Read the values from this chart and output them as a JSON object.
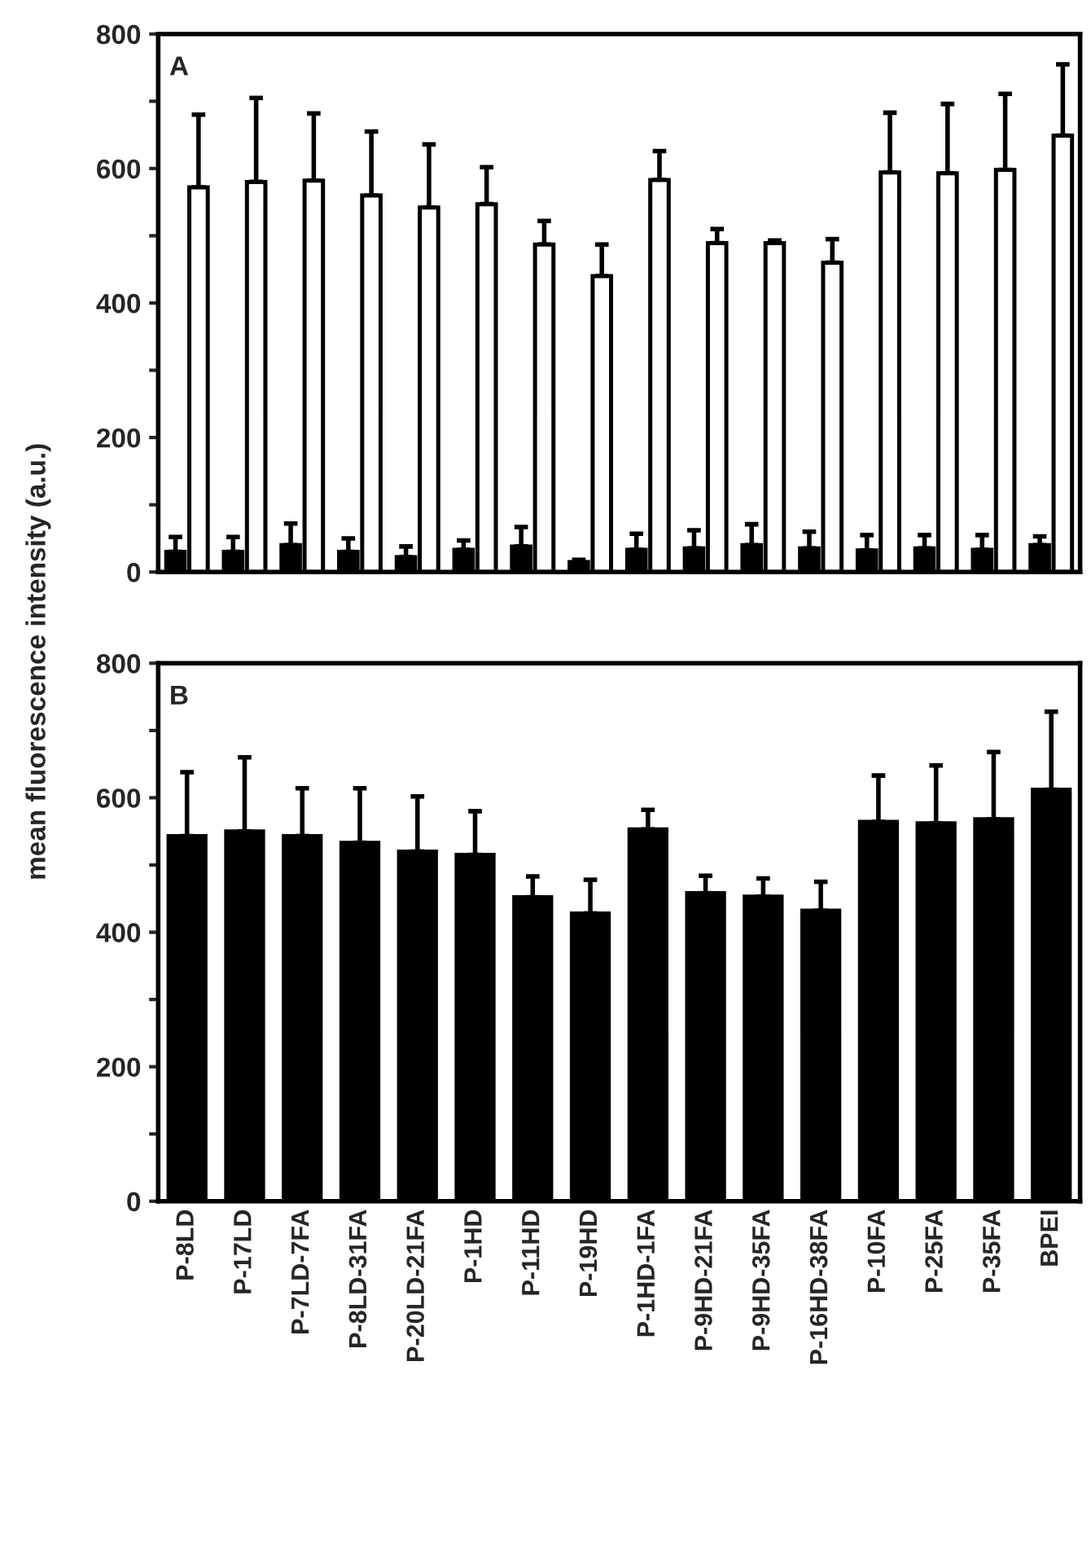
{
  "chart_data": [
    {
      "type": "bar",
      "ylabel": "mean fluorescence intensity (a.u.)",
      "annotations": [
        "A"
      ],
      "tick_labels": "y",
      "categories": [
        null,
        null,
        null,
        null,
        null,
        null,
        null,
        null,
        null,
        null,
        null,
        null,
        null,
        null,
        null,
        null
      ],
      "ylim": [
        0,
        800
      ],
      "yticks": [
        0,
        {
          "value": 100,
          "label": null
        },
        200,
        {
          "value": 300,
          "label": null
        },
        400,
        {
          "value": 500,
          "label": null
        },
        600,
        {
          "value": 700,
          "label": null
        },
        800
      ],
      "series": [
        {
          "color": "#000000",
          "values": [
            30,
            30,
            40,
            30,
            22,
            33,
            38,
            15,
            33,
            35,
            40,
            35,
            32,
            35,
            33,
            40
          ],
          "errors": [
            [
              30,
              52
            ],
            [
              30,
              52
            ],
            [
              40,
              72
            ],
            [
              30,
              50
            ],
            [
              22,
              38
            ],
            [
              33,
              47
            ],
            [
              38,
              67
            ],
            [
              15,
              18
            ],
            [
              33,
              57
            ],
            [
              35,
              62
            ],
            [
              40,
              71
            ],
            [
              35,
              60
            ],
            [
              32,
              55
            ],
            [
              35,
              55
            ],
            [
              33,
              55
            ],
            [
              40,
              53
            ]
          ]
        },
        {
          "color": "#ffffff",
          "values": [
            572,
            580,
            582,
            560,
            542,
            547,
            487,
            440,
            583,
            489,
            489,
            460,
            594,
            593,
            598,
            649
          ],
          "errors": [
            [
              572,
              680
            ],
            [
              580,
              705
            ],
            [
              582,
              682
            ],
            [
              560,
              655
            ],
            [
              542,
              636
            ],
            [
              547,
              602
            ],
            [
              487,
              522
            ],
            [
              440,
              487
            ],
            [
              583,
              626
            ],
            [
              489,
              510
            ],
            [
              489,
              493
            ],
            [
              460,
              495
            ],
            [
              594,
              683
            ],
            [
              593,
              696
            ],
            [
              598,
              711
            ],
            [
              649,
              755
            ]
          ]
        }
      ]
    },
    {
      "type": "bar",
      "annotations": [
        "B"
      ],
      "categories": [
        "P-8LD",
        "P-17LD",
        "P-7LD-7FA",
        "P-8LD-31FA",
        "P-20LD-21FA",
        "P-1HD",
        "P-11HD",
        "P-19HD",
        "P-1HD-1FA",
        "P-9HD-21FA",
        "P-9HD-35FA",
        "P-16HD-38FA",
        "P-10FA",
        "P-25FA",
        "P-35FA",
        "BPEI"
      ],
      "ylim": [
        0,
        800
      ],
      "yticks": [
        0,
        {
          "value": 100,
          "label": null
        },
        200,
        {
          "value": 300,
          "label": null
        },
        400,
        {
          "value": 500,
          "label": null
        },
        600,
        {
          "value": 700,
          "label": null
        },
        800
      ],
      "series": [
        {
          "color": "#000000",
          "values": [
            543,
            550,
            543,
            533,
            520,
            515,
            452,
            428,
            553,
            458,
            453,
            432,
            564,
            562,
            568,
            612
          ],
          "errors": [
            [
              543,
              638
            ],
            [
              550,
              660
            ],
            [
              543,
              614
            ],
            [
              533,
              614
            ],
            [
              520,
              602
            ],
            [
              515,
              580
            ],
            [
              452,
              483
            ],
            [
              428,
              478
            ],
            [
              553,
              582
            ],
            [
              458,
              484
            ],
            [
              453,
              480
            ],
            [
              432,
              475
            ],
            [
              564,
              633
            ],
            [
              562,
              648
            ],
            [
              568,
              668
            ],
            [
              612,
              728
            ]
          ]
        }
      ]
    }
  ]
}
